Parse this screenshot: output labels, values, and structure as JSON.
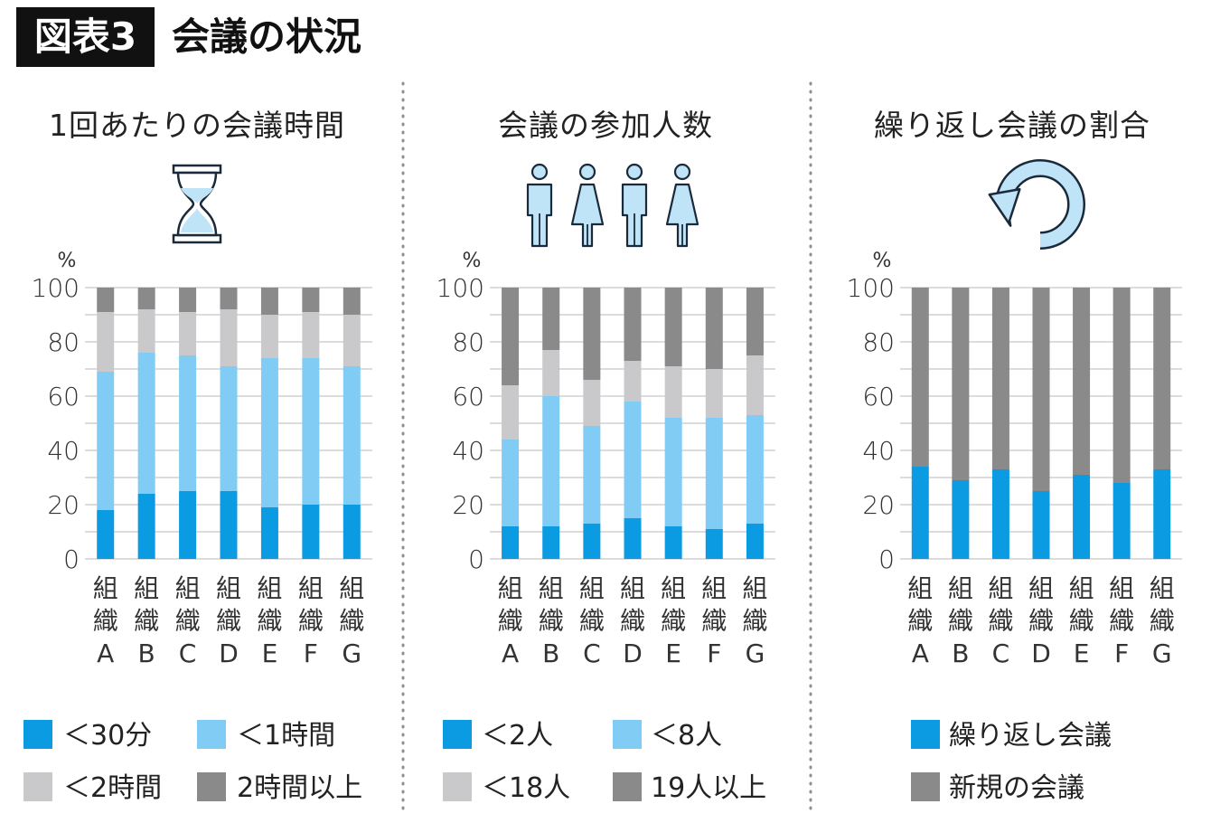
{
  "figure": {
    "tag": "図表3",
    "title": "会議の状況"
  },
  "colors": {
    "dark_blue": "#0b9be3",
    "light_blue": "#80ccf4",
    "light_gray": "#c9c9cb",
    "dark_gray": "#8a8a8a",
    "icon_fill": "#bfe3f7",
    "icon_stroke": "#1a2a3a"
  },
  "icons": [
    "hourglass-icon",
    "people-icon",
    "repeat-arrow-icon"
  ],
  "chart_data": [
    {
      "type": "bar",
      "stacked": true,
      "title": "1回あたりの会議時間",
      "ylabel": "%",
      "ylim": [
        0,
        100
      ],
      "yticks": [
        "0",
        "20",
        "40",
        "60",
        "80",
        "100"
      ],
      "grid": true,
      "categories": [
        "組\n織\nA",
        "組\n織\nB",
        "組\n織\nC",
        "組\n織\nD",
        "組\n織\nE",
        "組\n織\nF",
        "組\n織\nG"
      ],
      "series": [
        {
          "name": "＜30分",
          "color": "#0b9be3",
          "values": [
            18,
            24,
            25,
            25,
            19,
            20,
            20
          ]
        },
        {
          "name": "＜1時間",
          "color": "#80ccf4",
          "values": [
            51,
            52,
            50,
            46,
            55,
            54,
            51
          ]
        },
        {
          "name": "＜2時間",
          "color": "#c9c9cb",
          "values": [
            22,
            16,
            16,
            21,
            16,
            17,
            19
          ]
        },
        {
          "name": "2時間以上",
          "color": "#8a8a8a",
          "values": [
            9,
            8,
            9,
            8,
            10,
            9,
            10
          ]
        }
      ],
      "legend_position": "bottom"
    },
    {
      "type": "bar",
      "stacked": true,
      "title": "会議の参加人数",
      "ylabel": "%",
      "ylim": [
        0,
        100
      ],
      "yticks": [
        "0",
        "20",
        "40",
        "60",
        "80",
        "100"
      ],
      "grid": true,
      "categories": [
        "組\n織\nA",
        "組\n織\nB",
        "組\n織\nC",
        "組\n織\nD",
        "組\n織\nE",
        "組\n織\nF",
        "組\n織\nG"
      ],
      "series": [
        {
          "name": "＜2人",
          "color": "#0b9be3",
          "values": [
            12,
            12,
            13,
            15,
            12,
            11,
            13
          ]
        },
        {
          "name": "＜8人",
          "color": "#80ccf4",
          "values": [
            32,
            48,
            36,
            43,
            40,
            41,
            40
          ]
        },
        {
          "name": "＜18人",
          "color": "#c9c9cb",
          "values": [
            20,
            17,
            17,
            15,
            19,
            18,
            22
          ]
        },
        {
          "name": "19人以上",
          "color": "#8a8a8a",
          "values": [
            36,
            23,
            34,
            27,
            29,
            30,
            25
          ]
        }
      ],
      "legend_position": "bottom"
    },
    {
      "type": "bar",
      "stacked": true,
      "title": "繰り返し会議の割合",
      "ylabel": "%",
      "ylim": [
        0,
        100
      ],
      "yticks": [
        "0",
        "20",
        "40",
        "60",
        "80",
        "100"
      ],
      "grid": true,
      "categories": [
        "組\n織\nA",
        "組\n織\nB",
        "組\n織\nC",
        "組\n織\nD",
        "組\n織\nE",
        "組\n織\nF",
        "組\n織\nG"
      ],
      "series": [
        {
          "name": "繰り返し会議",
          "color": "#0b9be3",
          "values": [
            34,
            29,
            33,
            25,
            31,
            28,
            33
          ]
        },
        {
          "name": "新規の会議",
          "color": "#8a8a8a",
          "values": [
            66,
            71,
            67,
            75,
            69,
            72,
            67
          ]
        }
      ],
      "legend_position": "bottom"
    }
  ]
}
